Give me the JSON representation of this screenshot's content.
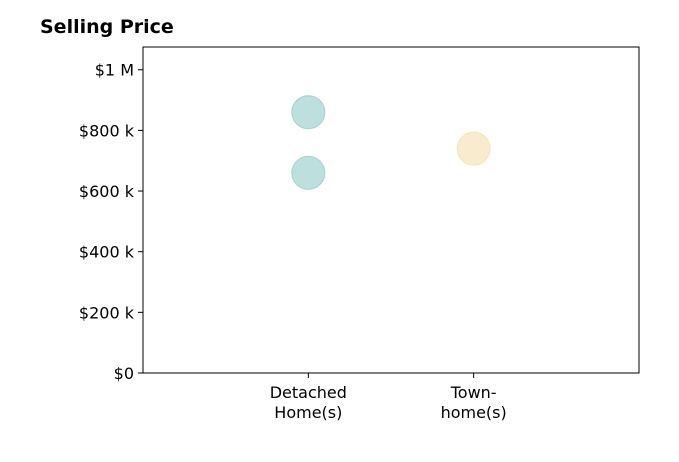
{
  "chart_data": {
    "type": "scatter",
    "title": "Selling Price",
    "xlabel": "",
    "ylabel": "",
    "categories": [
      [
        "Detached",
        "Home(s)"
      ],
      [
        "Town-",
        "home(s)"
      ]
    ],
    "xlim": [
      -1,
      2
    ],
    "ylim": [
      0,
      1075000
    ],
    "yticks": [
      0,
      200000,
      400000,
      600000,
      800000,
      1000000
    ],
    "ytick_labels": [
      "$0",
      "$200 k",
      "$400 k",
      "$600 k",
      "$800 k",
      "$1 M"
    ],
    "grid": false,
    "series": [
      {
        "category_index": 0,
        "values": [
          860000,
          660000
        ],
        "color": "#9fd3cf"
      },
      {
        "category_index": 1,
        "values": [
          740000
        ],
        "color": "#f6e3b8"
      }
    ]
  }
}
